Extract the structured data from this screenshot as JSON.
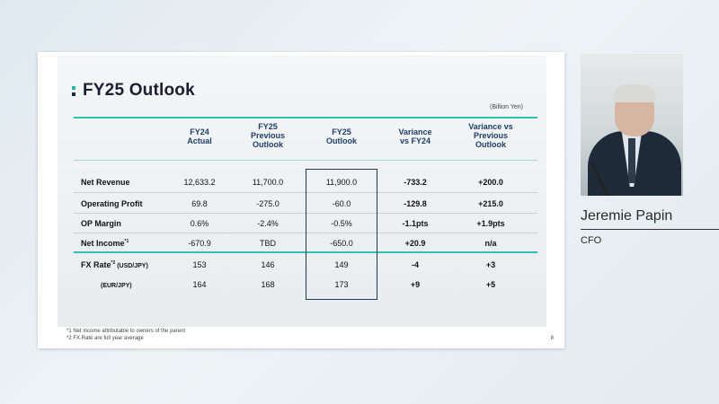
{
  "slide": {
    "title": "FY25 Outlook",
    "unit": "(Billion Yen)",
    "headers": [
      "FY24\nActual",
      "FY25\nPrevious\nOutlook",
      "FY25\nOutlook",
      "Variance\nvs FY24",
      "Variance vs\nPrevious\nOutlook"
    ],
    "rows": [
      {
        "label": "Net Revenue",
        "values": [
          "12,633.2",
          "11,700.0",
          "11,900.0",
          "-733.2",
          "+200.0"
        ]
      },
      {
        "label": "Operating Profit",
        "values": [
          "69.8",
          "-275.0",
          "-60.0",
          "-129.8",
          "+215.0"
        ]
      },
      {
        "label": "OP Margin",
        "values": [
          "0.6%",
          "-2.4%",
          "-0.5%",
          "-1.1pts",
          "+1.9pts"
        ]
      },
      {
        "label": "Net Income",
        "sup": "*1",
        "values": [
          "-670.9",
          "TBD",
          "-650.0",
          "+20.9",
          "n/a"
        ]
      },
      {
        "label": "FX Rate",
        "sup": "*2",
        "sub": "(USD/JPY)",
        "values": [
          "153",
          "146",
          "149",
          "-4",
          "+3"
        ]
      },
      {
        "label": "",
        "sub": "(EUR/JPY)",
        "values": [
          "164",
          "168",
          "173",
          "+9",
          "+5"
        ]
      }
    ],
    "notes": [
      "*1 Net income attributable to owners of the parent",
      "*2 FX Rate are full year average"
    ],
    "page_number": "8"
  },
  "presenter": {
    "name": "Jeremie Papin",
    "role": "CFO"
  }
}
